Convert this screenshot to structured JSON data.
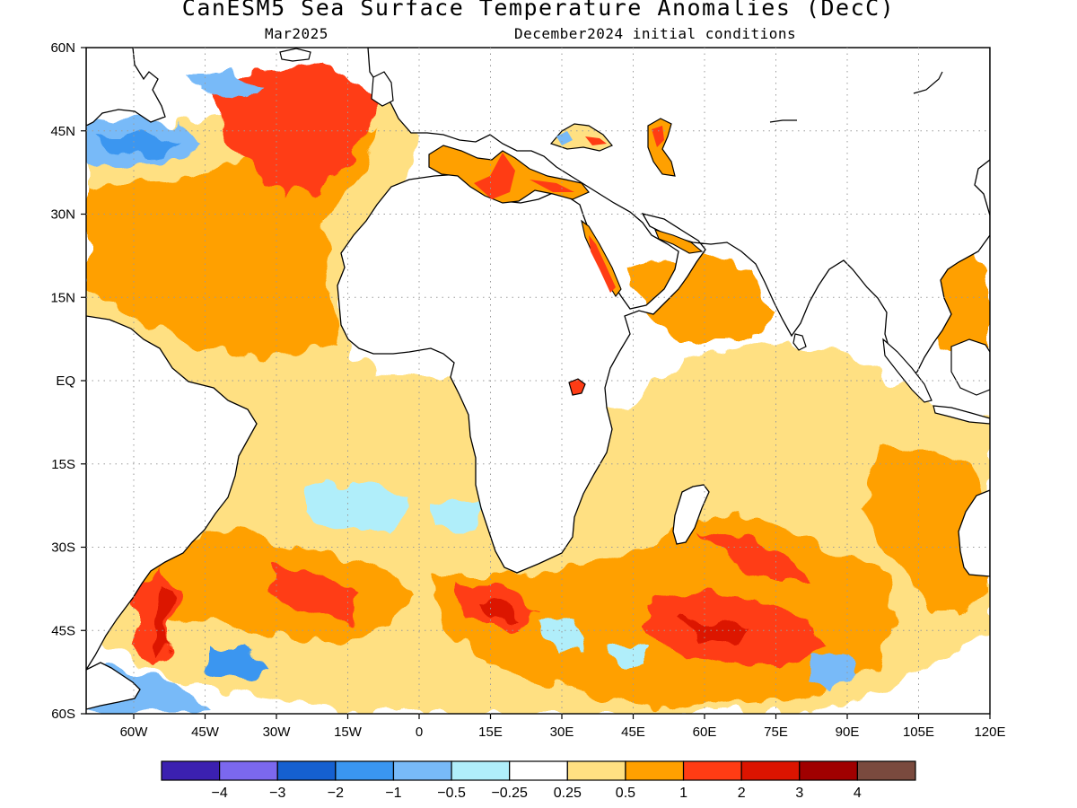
{
  "title": "CanESM5 Sea Surface Temperature Anomalies (DecC)",
  "valid_month": "Mar2025",
  "init_conditions": "December2024 initial conditions",
  "map": {
    "lon_range": [
      -70,
      120
    ],
    "lat_range": [
      -60,
      60
    ],
    "lat_ticks": [
      {
        "value": 60,
        "label": "60N"
      },
      {
        "value": 45,
        "label": "45N"
      },
      {
        "value": 30,
        "label": "30N"
      },
      {
        "value": 15,
        "label": "15N"
      },
      {
        "value": 0,
        "label": "EQ"
      },
      {
        "value": -15,
        "label": "15S"
      },
      {
        "value": -30,
        "label": "30S"
      },
      {
        "value": -45,
        "label": "45S"
      },
      {
        "value": -60,
        "label": "60S"
      }
    ],
    "lon_ticks": [
      {
        "value": -60,
        "label": "60W"
      },
      {
        "value": -45,
        "label": "45W"
      },
      {
        "value": -30,
        "label": "30W"
      },
      {
        "value": -15,
        "label": "15W"
      },
      {
        "value": 0,
        "label": "0"
      },
      {
        "value": 15,
        "label": "15E"
      },
      {
        "value": 30,
        "label": "30E"
      },
      {
        "value": 45,
        "label": "45E"
      },
      {
        "value": 60,
        "label": "60E"
      },
      {
        "value": 75,
        "label": "75E"
      },
      {
        "value": 90,
        "label": "90E"
      },
      {
        "value": 105,
        "label": "105E"
      },
      {
        "value": 120,
        "label": "120E"
      }
    ],
    "grid": true,
    "grid_style": "dotted"
  },
  "colorbar": {
    "colors": [
      "#3b20b0",
      "#7b68ee",
      "#1560d0",
      "#3a96f0",
      "#78baf8",
      "#b0eefa",
      "#ffffff",
      "#ffe082",
      "#ffa000",
      "#ff3c14",
      "#dc1400",
      "#a00000",
      "#7a4a3e"
    ],
    "labels": [
      "−4",
      "−3",
      "−2",
      "−1",
      "−0.5",
      "−0.25",
      "0.25",
      "0.5",
      "1",
      "2",
      "3",
      "4"
    ]
  },
  "colors": {
    "land": "#ffffff",
    "coastline": "#000000",
    "grid": "#9a9a9a"
  }
}
